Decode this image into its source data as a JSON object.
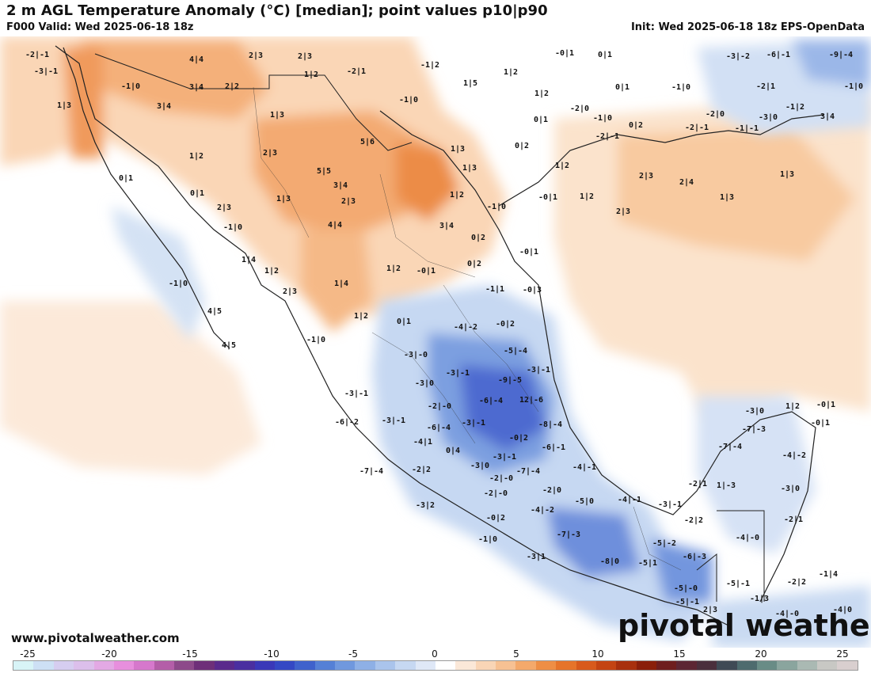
{
  "header": {
    "title": "2 m AGL Temperature Anomaly (°C) [median]; point values p10|p90",
    "valid": "F000 Valid: Wed 2025-06-18 18z",
    "init": "Init: Wed 2025-06-18 18z EPS-OpenData"
  },
  "footer": {
    "site": "www.pivotalweather.com",
    "brand": "pivotal weather"
  },
  "colorbar": {
    "ticks": [
      "-25",
      "-20",
      "-15",
      "-10",
      "-5",
      "0",
      "5",
      "10",
      "15",
      "20",
      "25"
    ],
    "colors": [
      "#d8f4f7",
      "#cde0f5",
      "#d6cdf0",
      "#dcbfeb",
      "#e3a9e4",
      "#e78fdd",
      "#d678cc",
      "#b45ea8",
      "#8d4a8a",
      "#6e2f79",
      "#5a2a8c",
      "#4a2fa0",
      "#3a38b8",
      "#3448c4",
      "#3f62cc",
      "#5580d6",
      "#7098de",
      "#8eb0e6",
      "#aac4ec",
      "#c6d8f2",
      "#dfe8f7",
      "#ffffff",
      "#fbe8d8",
      "#f9d5b6",
      "#f7c193",
      "#f4a96b",
      "#ee8e45",
      "#e6742a",
      "#d85a1c",
      "#c44412",
      "#a8300d",
      "#8a1f0a",
      "#6e1e1e",
      "#5c2633",
      "#4a2f3c",
      "#3f4a55",
      "#4e6b6e",
      "#698c86",
      "#8aa59e",
      "#aab9b3",
      "#c8c8c4",
      "#d9cfcf"
    ]
  },
  "points": [
    "-2|-1",
    "-3|-1",
    "4|4",
    "2|3",
    "2|3",
    "-1|2",
    "-0|1",
    "0|1",
    "-3|-2",
    "-6|-1",
    "-9|-4",
    "1|2",
    "-1|0",
    "1|5",
    "1|2",
    "-2|1",
    "-2|1",
    "-1|0",
    "3|4",
    "2|2",
    "-1|0",
    "1|3",
    "3|4",
    "1|2",
    "0|1",
    "-1|0",
    "-2|0",
    "-1|0",
    "-1|2",
    "1|3",
    "0|1",
    "-2|0",
    "0|2",
    "-2|-1",
    "-1|-1",
    "-3|0",
    "3|4",
    "5|6",
    "-2|-1",
    "1|3",
    "0|2",
    "1|2",
    "2|3",
    "1|2",
    "5|5",
    "1|3",
    "1|3",
    "0|1",
    "3|4",
    "1|2",
    "0|1",
    "2|3",
    "2|3",
    "2|4",
    "1|3",
    "1|3",
    "2|3",
    "-0|1",
    "1|2",
    "-1|0",
    "-1|0",
    "4|4",
    "3|4",
    "2|3",
    "0|2",
    "-0|1",
    "1|4",
    "1|2",
    "-0|1",
    "0|2",
    "1|2",
    "-1|1",
    "-0|3",
    "-1|0",
    "2|3",
    "1|4",
    "4|5",
    "1|2",
    "0|1",
    "-4|-2",
    "-0|2",
    "-1|0",
    "4|5",
    "-5|-4",
    "-3|-0",
    "-3|-1",
    "-3|-1",
    "-9|-5",
    "-3|0",
    "-6|-4",
    "12|-6",
    "-3|-1",
    "-2|-0",
    "-6|-2",
    "-3|0",
    "1|2",
    "-0|1",
    "-3|-1",
    "-6|-4",
    "-3|-1",
    "-8|-4",
    "-4|1",
    "-0|2",
    "-0|1",
    "-7|-3",
    "-7|-4",
    "0|4",
    "-6|-1",
    "-4|-2",
    "-3|0",
    "-3|-1",
    "-7|-4",
    "-4|-1",
    "-7|-4",
    "-2|2",
    "-2|-0",
    "-2|-0",
    "-2|0",
    "-5|0",
    "-4|-1",
    "-3|-1",
    "-2|1",
    "1|-3",
    "-3|2",
    "-0|2",
    "-4|-2",
    "-2|2",
    "-3|0",
    "-2|1",
    "-1|0",
    "-7|-3",
    "-5|-2",
    "-4|-0",
    "-3|1",
    "-8|0",
    "-5|1",
    "-6|-3",
    "-1|4",
    "-5|-0",
    "-5|-1",
    "-2|2",
    "-5|-1",
    "-1|3",
    "2|3",
    "-4|0",
    "-4|-0"
  ]
}
